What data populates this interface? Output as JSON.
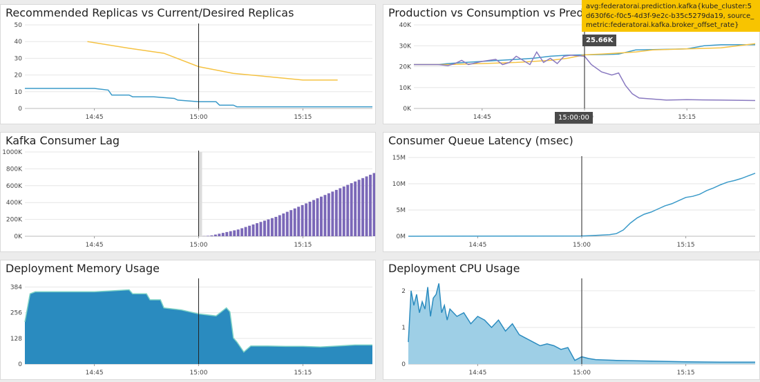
{
  "tooltip": {
    "line1": "avg:federatorai.prediction.kafka{kube_cluster:5",
    "line2": "d630f6c-f0c5-4d3f-9e2c-b35c5279da19, source_",
    "line3": "metric:federatorai.kafka.broker_offset_rate}"
  },
  "value_badge": "25.66K",
  "time_badge": "15:00:00",
  "chart_data": [
    {
      "type": "line",
      "title": "Recommended Replicas vs Current/Desired Replicas",
      "x_ticks": [
        "14:45",
        "15:00",
        "15:15"
      ],
      "y_ticks": [
        "0",
        "10",
        "20",
        "30",
        "40",
        "50"
      ],
      "ylim": [
        0,
        50
      ],
      "colors": [
        "#f5c242",
        "#3a9ac9"
      ],
      "series": [
        {
          "x": [
            0.18,
            0.3,
            0.4,
            0.5,
            0.6,
            0.7,
            0.8,
            0.85,
            0.9
          ],
          "values": [
            40,
            36,
            33,
            25,
            21,
            19,
            17,
            17,
            17
          ]
        },
        {
          "x": [
            0,
            0.2,
            0.24,
            0.25,
            0.3,
            0.31,
            0.36,
            0.37,
            0.43,
            0.44,
            0.5,
            0.55,
            0.56,
            0.6,
            0.61,
            1.0
          ],
          "values": [
            12,
            12,
            11,
            8,
            8,
            7,
            7,
            7,
            6,
            5,
            4,
            4,
            2,
            2,
            1,
            1
          ]
        }
      ],
      "cursor_x": 0.5
    },
    {
      "type": "line",
      "title": "Production vs Consumption vs Prediction",
      "x_ticks": [
        "14:45",
        "15:00",
        "15:15"
      ],
      "y_ticks": [
        "0K",
        "10K",
        "20K",
        "30K",
        "40K"
      ],
      "ylim": [
        0,
        40000
      ],
      "colors": [
        "#3a9ac9",
        "#f5c242",
        "#8878c0"
      ],
      "series": [
        {
          "x": [
            0,
            0.07,
            0.1,
            0.15,
            0.2,
            0.25,
            0.35,
            0.4,
            0.45,
            0.5,
            0.55,
            0.6,
            0.65,
            0.8,
            0.85,
            0.9,
            1.0
          ],
          "values": [
            21000,
            21000,
            21500,
            22000,
            22500,
            23000,
            24000,
            25000,
            25500,
            25660,
            25800,
            26000,
            28000,
            28500,
            30000,
            30500,
            30500
          ]
        },
        {
          "x": [
            0,
            0.1,
            0.2,
            0.3,
            0.4,
            0.45,
            0.5,
            0.55,
            0.6,
            0.65,
            0.7,
            0.8,
            0.9,
            1.0
          ],
          "values": [
            21000,
            21000,
            21500,
            22000,
            23000,
            24000,
            25660,
            26000,
            26500,
            27000,
            28000,
            28500,
            29000,
            31000
          ]
        },
        {
          "x": [
            0,
            0.07,
            0.1,
            0.12,
            0.14,
            0.16,
            0.2,
            0.24,
            0.26,
            0.28,
            0.3,
            0.32,
            0.34,
            0.36,
            0.38,
            0.4,
            0.42,
            0.44,
            0.46,
            0.5,
            0.52,
            0.55,
            0.58,
            0.6,
            0.62,
            0.64,
            0.66,
            0.7,
            0.74,
            0.8,
            0.9,
            1.0
          ],
          "values": [
            21000,
            21000,
            20500,
            21500,
            23000,
            21000,
            22500,
            23500,
            21000,
            22000,
            25000,
            23000,
            21000,
            27000,
            22000,
            24000,
            21500,
            25000,
            25500,
            25000,
            21000,
            17500,
            16000,
            17000,
            11000,
            7000,
            5000,
            4500,
            4000,
            4200,
            4000,
            3800
          ]
        }
      ],
      "cursor_x": 0.5
    },
    {
      "type": "bar",
      "title": "Kafka Consumer Lag",
      "x_ticks": [
        "14:45",
        "15:00",
        "15:15"
      ],
      "y_ticks": [
        "0K",
        "200K",
        "400K",
        "600K",
        "800K",
        "1000K"
      ],
      "ylim": [
        0,
        1000000
      ],
      "colors": [
        "#7b68b8"
      ],
      "x_start": 0.5,
      "values": [
        2000,
        5000,
        10000,
        20000,
        30000,
        40000,
        50000,
        60000,
        70000,
        80000,
        95000,
        110000,
        125000,
        140000,
        155000,
        170000,
        185000,
        200000,
        215000,
        230000,
        250000,
        270000,
        290000,
        310000,
        330000,
        350000,
        370000,
        390000,
        410000,
        430000,
        450000,
        470000,
        490000,
        510000,
        530000,
        550000,
        570000,
        590000,
        610000,
        630000,
        650000,
        670000,
        690000,
        710000,
        730000,
        750000
      ],
      "cursor_x": 0.5
    },
    {
      "type": "line",
      "title": "Consumer Queue Latency (msec)",
      "x_ticks": [
        "14:45",
        "15:00",
        "15:15"
      ],
      "y_ticks": [
        "0M",
        "5M",
        "10M",
        "15M"
      ],
      "ylim": [
        0,
        15000000
      ],
      "colors": [
        "#3a9ac9"
      ],
      "series": [
        {
          "x": [
            0,
            0.5,
            0.52,
            0.55,
            0.58,
            0.6,
            0.62,
            0.64,
            0.66,
            0.68,
            0.7,
            0.72,
            0.74,
            0.76,
            0.78,
            0.8,
            0.82,
            0.84,
            0.86,
            0.88,
            0.9,
            0.92,
            0.94,
            0.96,
            0.98,
            1.0
          ],
          "values": [
            0,
            50000,
            100000,
            200000,
            300000,
            500000,
            1200000,
            2500000,
            3500000,
            4200000,
            4600000,
            5200000,
            5800000,
            6200000,
            6800000,
            7400000,
            7600000,
            8000000,
            8700000,
            9200000,
            9800000,
            10300000,
            10600000,
            11000000,
            11500000,
            12000000
          ]
        }
      ],
      "cursor_x": 0.5
    },
    {
      "type": "area",
      "title": "Deployment Memory Usage",
      "x_ticks": [
        "14:45",
        "15:00",
        "15:15"
      ],
      "y_ticks": [
        "0",
        "128",
        "256",
        "384"
      ],
      "ylim": [
        0,
        420
      ],
      "colors": [
        "#2a8bbf"
      ],
      "series": [
        {
          "x": [
            0,
            0.015,
            0.03,
            0.2,
            0.25,
            0.3,
            0.31,
            0.35,
            0.36,
            0.39,
            0.4,
            0.45,
            0.5,
            0.55,
            0.58,
            0.59,
            0.6,
            0.61,
            0.63,
            0.65,
            0.7,
            0.75,
            0.8,
            0.85,
            0.9,
            0.95,
            1.0
          ],
          "values": [
            210,
            350,
            360,
            360,
            365,
            370,
            350,
            350,
            320,
            320,
            280,
            270,
            250,
            240,
            280,
            260,
            130,
            110,
            60,
            90,
            90,
            88,
            88,
            85,
            90,
            95,
            95
          ]
        }
      ],
      "cursor_x": 0.5
    },
    {
      "type": "area",
      "title": "Deployment CPU Usage",
      "x_ticks": [
        "14:45",
        "15:00",
        "15:15"
      ],
      "y_ticks": [
        "0",
        "1",
        "2"
      ],
      "ylim": [
        0,
        2.3
      ],
      "colors": [
        "#9ecfe6"
      ],
      "series": [
        {
          "x": [
            0,
            0.008,
            0.016,
            0.024,
            0.032,
            0.04,
            0.048,
            0.056,
            0.064,
            0.072,
            0.08,
            0.088,
            0.096,
            0.104,
            0.112,
            0.12,
            0.14,
            0.16,
            0.18,
            0.2,
            0.22,
            0.24,
            0.26,
            0.28,
            0.3,
            0.32,
            0.34,
            0.36,
            0.38,
            0.4,
            0.42,
            0.44,
            0.46,
            0.48,
            0.5,
            0.52,
            0.54,
            0.6,
            0.7,
            0.8,
            0.9,
            1.0
          ],
          "values": [
            0.6,
            2.0,
            1.6,
            1.9,
            1.4,
            1.7,
            1.5,
            2.1,
            1.3,
            1.8,
            1.9,
            2.2,
            1.4,
            1.6,
            1.2,
            1.5,
            1.3,
            1.4,
            1.1,
            1.3,
            1.2,
            1.0,
            1.2,
            0.9,
            1.1,
            0.8,
            0.7,
            0.6,
            0.5,
            0.55,
            0.5,
            0.4,
            0.45,
            0.1,
            0.2,
            0.15,
            0.12,
            0.1,
            0.08,
            0.06,
            0.05,
            0.05
          ]
        }
      ],
      "cursor_x": 0.5
    }
  ]
}
